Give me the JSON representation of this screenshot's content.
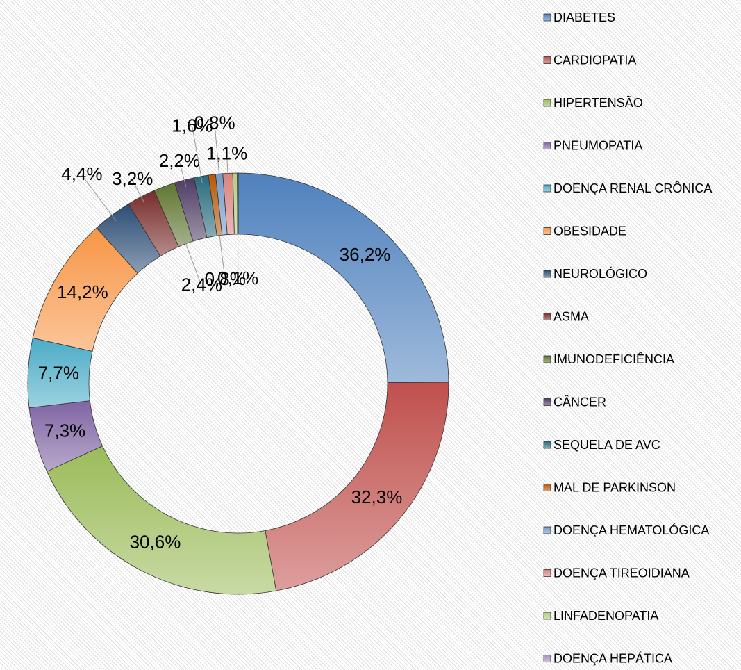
{
  "chart_data": {
    "type": "donut",
    "categories": [
      "DIABETES",
      "CARDIOPATIA",
      "HIPERTENSÃO",
      "PNEUMOPATIA",
      "DOENÇA RENAL CRÔNICA",
      "OBESIDADE",
      "NEUROLÓGICO",
      "ASMA",
      "IMUNODEFICIÊNCIA",
      "CÂNCER",
      "SEQUELA DE AVC",
      "MAL DE PARKINSON",
      "DOENÇA HEMATOLÓGICA",
      "DOENÇA TIREOIDIANA",
      "LINFADENOPATIA",
      "DOENÇA HEPÁTICA"
    ],
    "values": [
      36.2,
      32.3,
      30.6,
      7.3,
      7.7,
      14.2,
      4.4,
      3.2,
      2.4,
      2.2,
      1.6,
      0.8,
      0.8,
      1.1,
      0.5,
      0.1
    ],
    "value_labels": [
      "36,2%",
      "32,3%",
      "30,6%",
      "7,3%",
      "7,7%",
      "14,2%",
      "4,4%",
      "3,2%",
      "2,4%",
      "2,2%",
      "1,6%",
      "0,8%",
      "0,8%",
      "1,1%",
      null,
      "0,1%"
    ],
    "colors": [
      "#4f81bd",
      "#c0504d",
      "#9bbb59",
      "#8064a2",
      "#4bacc6",
      "#f79646",
      "#2c4d75",
      "#772c2a",
      "#5f7530",
      "#4d3b62",
      "#276a7c",
      "#b65708",
      "#729aca",
      "#d9827f",
      "#b3cc82",
      "#a18fbf"
    ],
    "legend": "right"
  }
}
